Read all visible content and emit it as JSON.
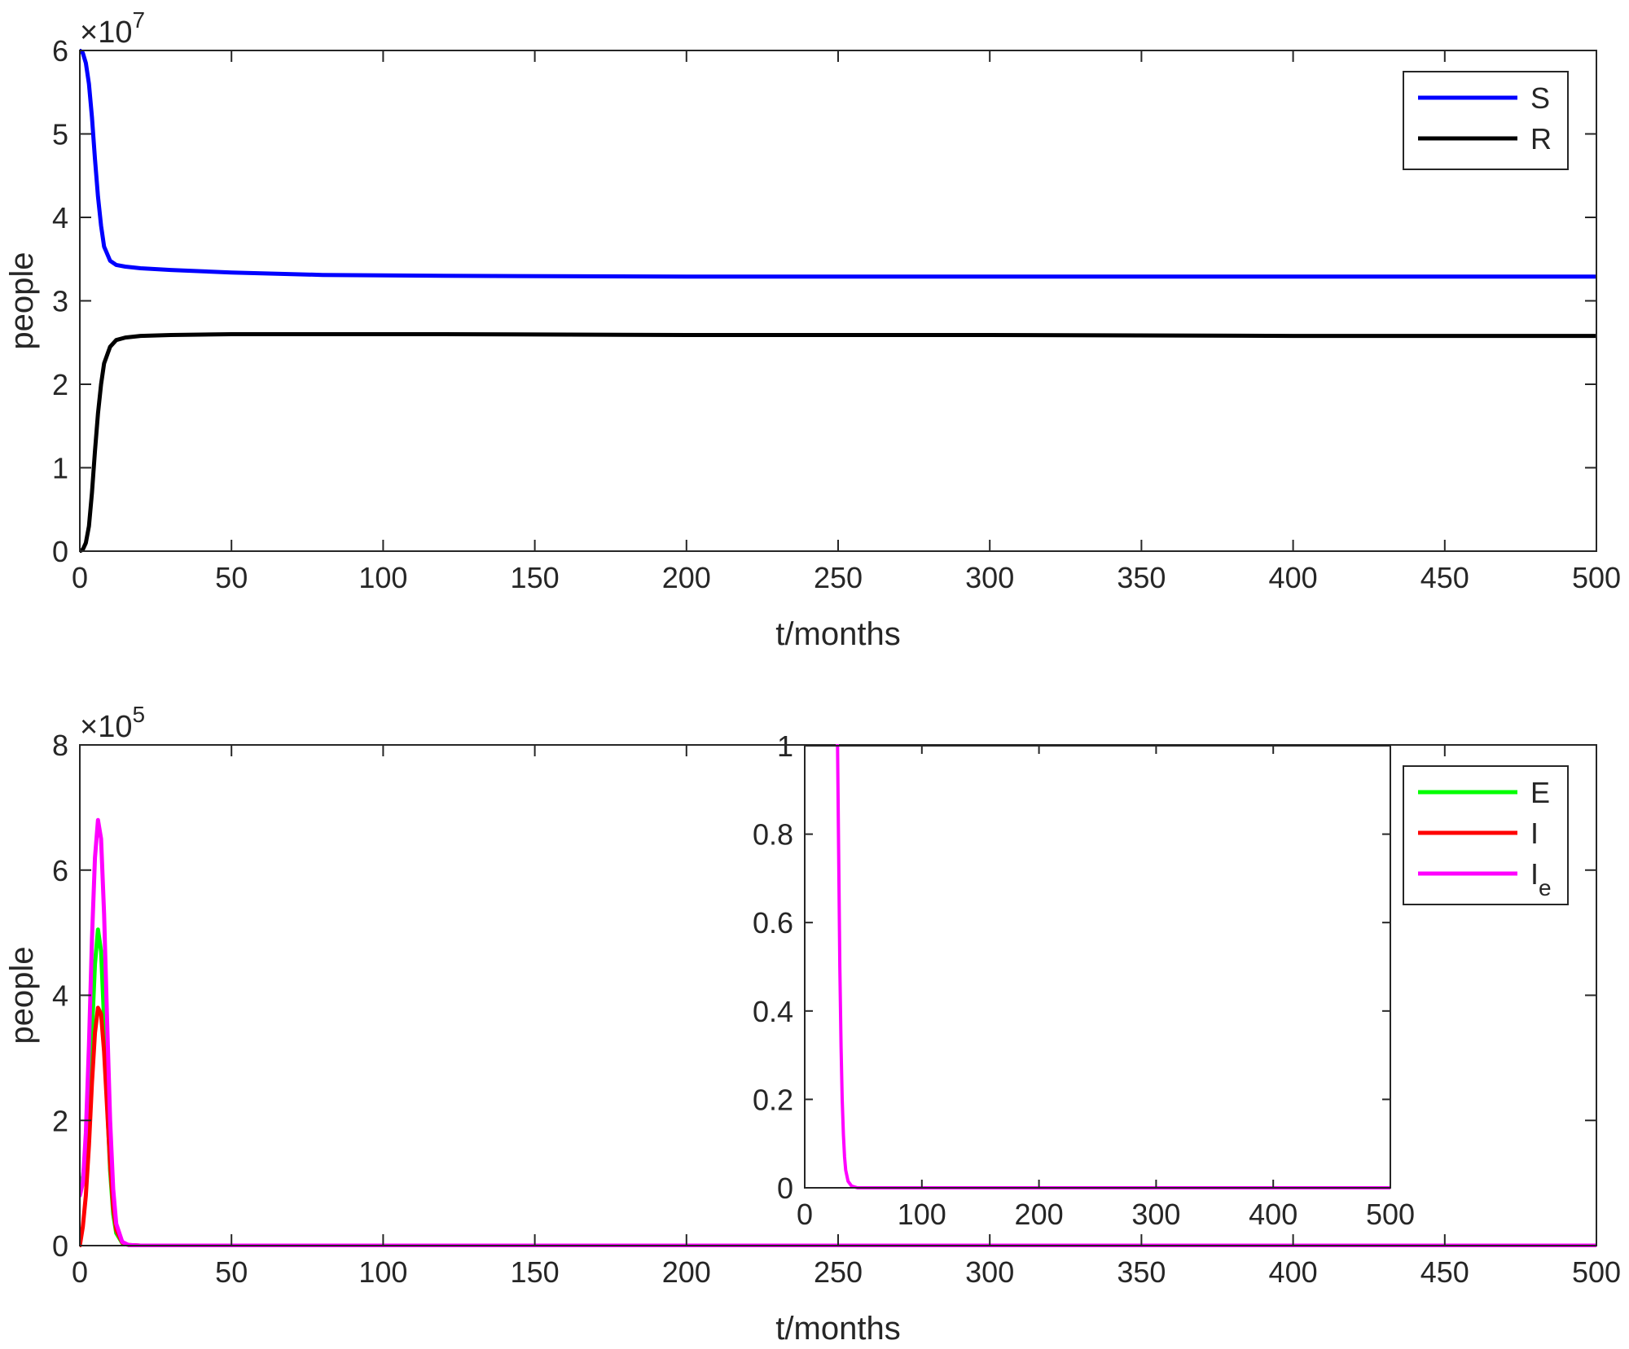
{
  "chart_data": [
    {
      "type": "line",
      "ylabel": "people",
      "xlabel": "t/months",
      "xlim": [
        0,
        500
      ],
      "ylim": [
        0,
        6
      ],
      "y_exponent": "7",
      "xticks": [
        "0",
        "50",
        "100",
        "150",
        "200",
        "250",
        "300",
        "350",
        "400",
        "450",
        "500"
      ],
      "yticks": [
        "0",
        "1",
        "2",
        "3",
        "4",
        "5",
        "6"
      ],
      "legend": {
        "position": "top-right",
        "entries": [
          {
            "label": "S",
            "color": "#0000ff"
          },
          {
            "label": "R",
            "color": "#000000"
          }
        ]
      },
      "series": [
        {
          "name": "S",
          "color": "#0000ff",
          "x": [
            0,
            1,
            2,
            3,
            4,
            5,
            6,
            7,
            8,
            10,
            12,
            15,
            20,
            30,
            50,
            80,
            120,
            200,
            300,
            400,
            500
          ],
          "y": [
            6.0,
            5.97,
            5.85,
            5.6,
            5.2,
            4.7,
            4.25,
            3.9,
            3.65,
            3.48,
            3.43,
            3.41,
            3.39,
            3.37,
            3.34,
            3.31,
            3.3,
            3.29,
            3.29,
            3.29,
            3.29
          ]
        },
        {
          "name": "R",
          "color": "#000000",
          "x": [
            0,
            1,
            2,
            3,
            4,
            5,
            6,
            7,
            8,
            10,
            12,
            15,
            20,
            30,
            50,
            80,
            120,
            200,
            300,
            400,
            500
          ],
          "y": [
            0.0,
            0.02,
            0.1,
            0.3,
            0.7,
            1.2,
            1.65,
            2.0,
            2.25,
            2.45,
            2.53,
            2.56,
            2.58,
            2.59,
            2.6,
            2.6,
            2.6,
            2.59,
            2.59,
            2.58,
            2.58
          ]
        }
      ]
    },
    {
      "type": "line",
      "ylabel": "people",
      "xlabel": "t/months",
      "xlim": [
        0,
        500
      ],
      "ylim": [
        0,
        8
      ],
      "y_exponent": "5",
      "xticks": [
        "0",
        "50",
        "100",
        "150",
        "200",
        "250",
        "300",
        "350",
        "400",
        "450",
        "500"
      ],
      "yticks": [
        "0",
        "2",
        "4",
        "6",
        "8"
      ],
      "legend": {
        "position": "top-right",
        "entries": [
          {
            "label": "E",
            "color": "#00ff00"
          },
          {
            "label": "I",
            "color": "#ff0000"
          },
          {
            "label": "I",
            "subscript": "e",
            "color": "#ff00ff"
          }
        ]
      },
      "series": [
        {
          "name": "E",
          "color": "#00ff00",
          "x": [
            0,
            1,
            2,
            3,
            4,
            5,
            6,
            7,
            8,
            9,
            10,
            11,
            12,
            14,
            16,
            20,
            500
          ],
          "y": [
            1.0,
            1.1,
            1.5,
            2.3,
            3.4,
            4.5,
            5.05,
            4.7,
            3.6,
            2.3,
            1.2,
            0.5,
            0.2,
            0.04,
            0.01,
            0.0,
            0.0
          ]
        },
        {
          "name": "I",
          "color": "#ff0000",
          "x": [
            0,
            1,
            2,
            3,
            4,
            5,
            6,
            7,
            8,
            9,
            10,
            11,
            12,
            14,
            16,
            20,
            500
          ],
          "y": [
            0.0,
            0.3,
            0.8,
            1.6,
            2.6,
            3.4,
            3.8,
            3.7,
            3.1,
            2.2,
            1.3,
            0.6,
            0.25,
            0.05,
            0.01,
            0.0,
            0.0
          ]
        },
        {
          "name": "I_e",
          "color": "#ff00ff",
          "x": [
            0,
            1,
            2,
            3,
            4,
            5,
            6,
            7,
            8,
            9,
            10,
            11,
            12,
            14,
            16,
            20,
            500
          ],
          "y": [
            0.8,
            1.0,
            1.8,
            3.2,
            4.9,
            6.2,
            6.8,
            6.5,
            5.3,
            3.6,
            2.0,
            0.9,
            0.35,
            0.06,
            0.01,
            0.0,
            0.0
          ]
        }
      ]
    },
    {
      "type": "line",
      "role": "inset",
      "xlim": [
        0,
        500
      ],
      "ylim": [
        0,
        1
      ],
      "xticks": [
        "0",
        "100",
        "200",
        "300",
        "400",
        "500"
      ],
      "yticks": [
        "0",
        "0.2",
        "0.4",
        "0.6",
        "0.8",
        "1"
      ],
      "series": [
        {
          "name": "I_e",
          "color": "#ff00ff",
          "x": [
            0,
            28,
            29,
            30,
            31,
            32,
            33,
            34,
            35,
            37,
            40,
            45,
            60,
            500
          ],
          "y": [
            1.5,
            1.0,
            0.75,
            0.5,
            0.32,
            0.2,
            0.12,
            0.07,
            0.04,
            0.015,
            0.004,
            0.0,
            0.0,
            0.0
          ]
        }
      ]
    }
  ]
}
